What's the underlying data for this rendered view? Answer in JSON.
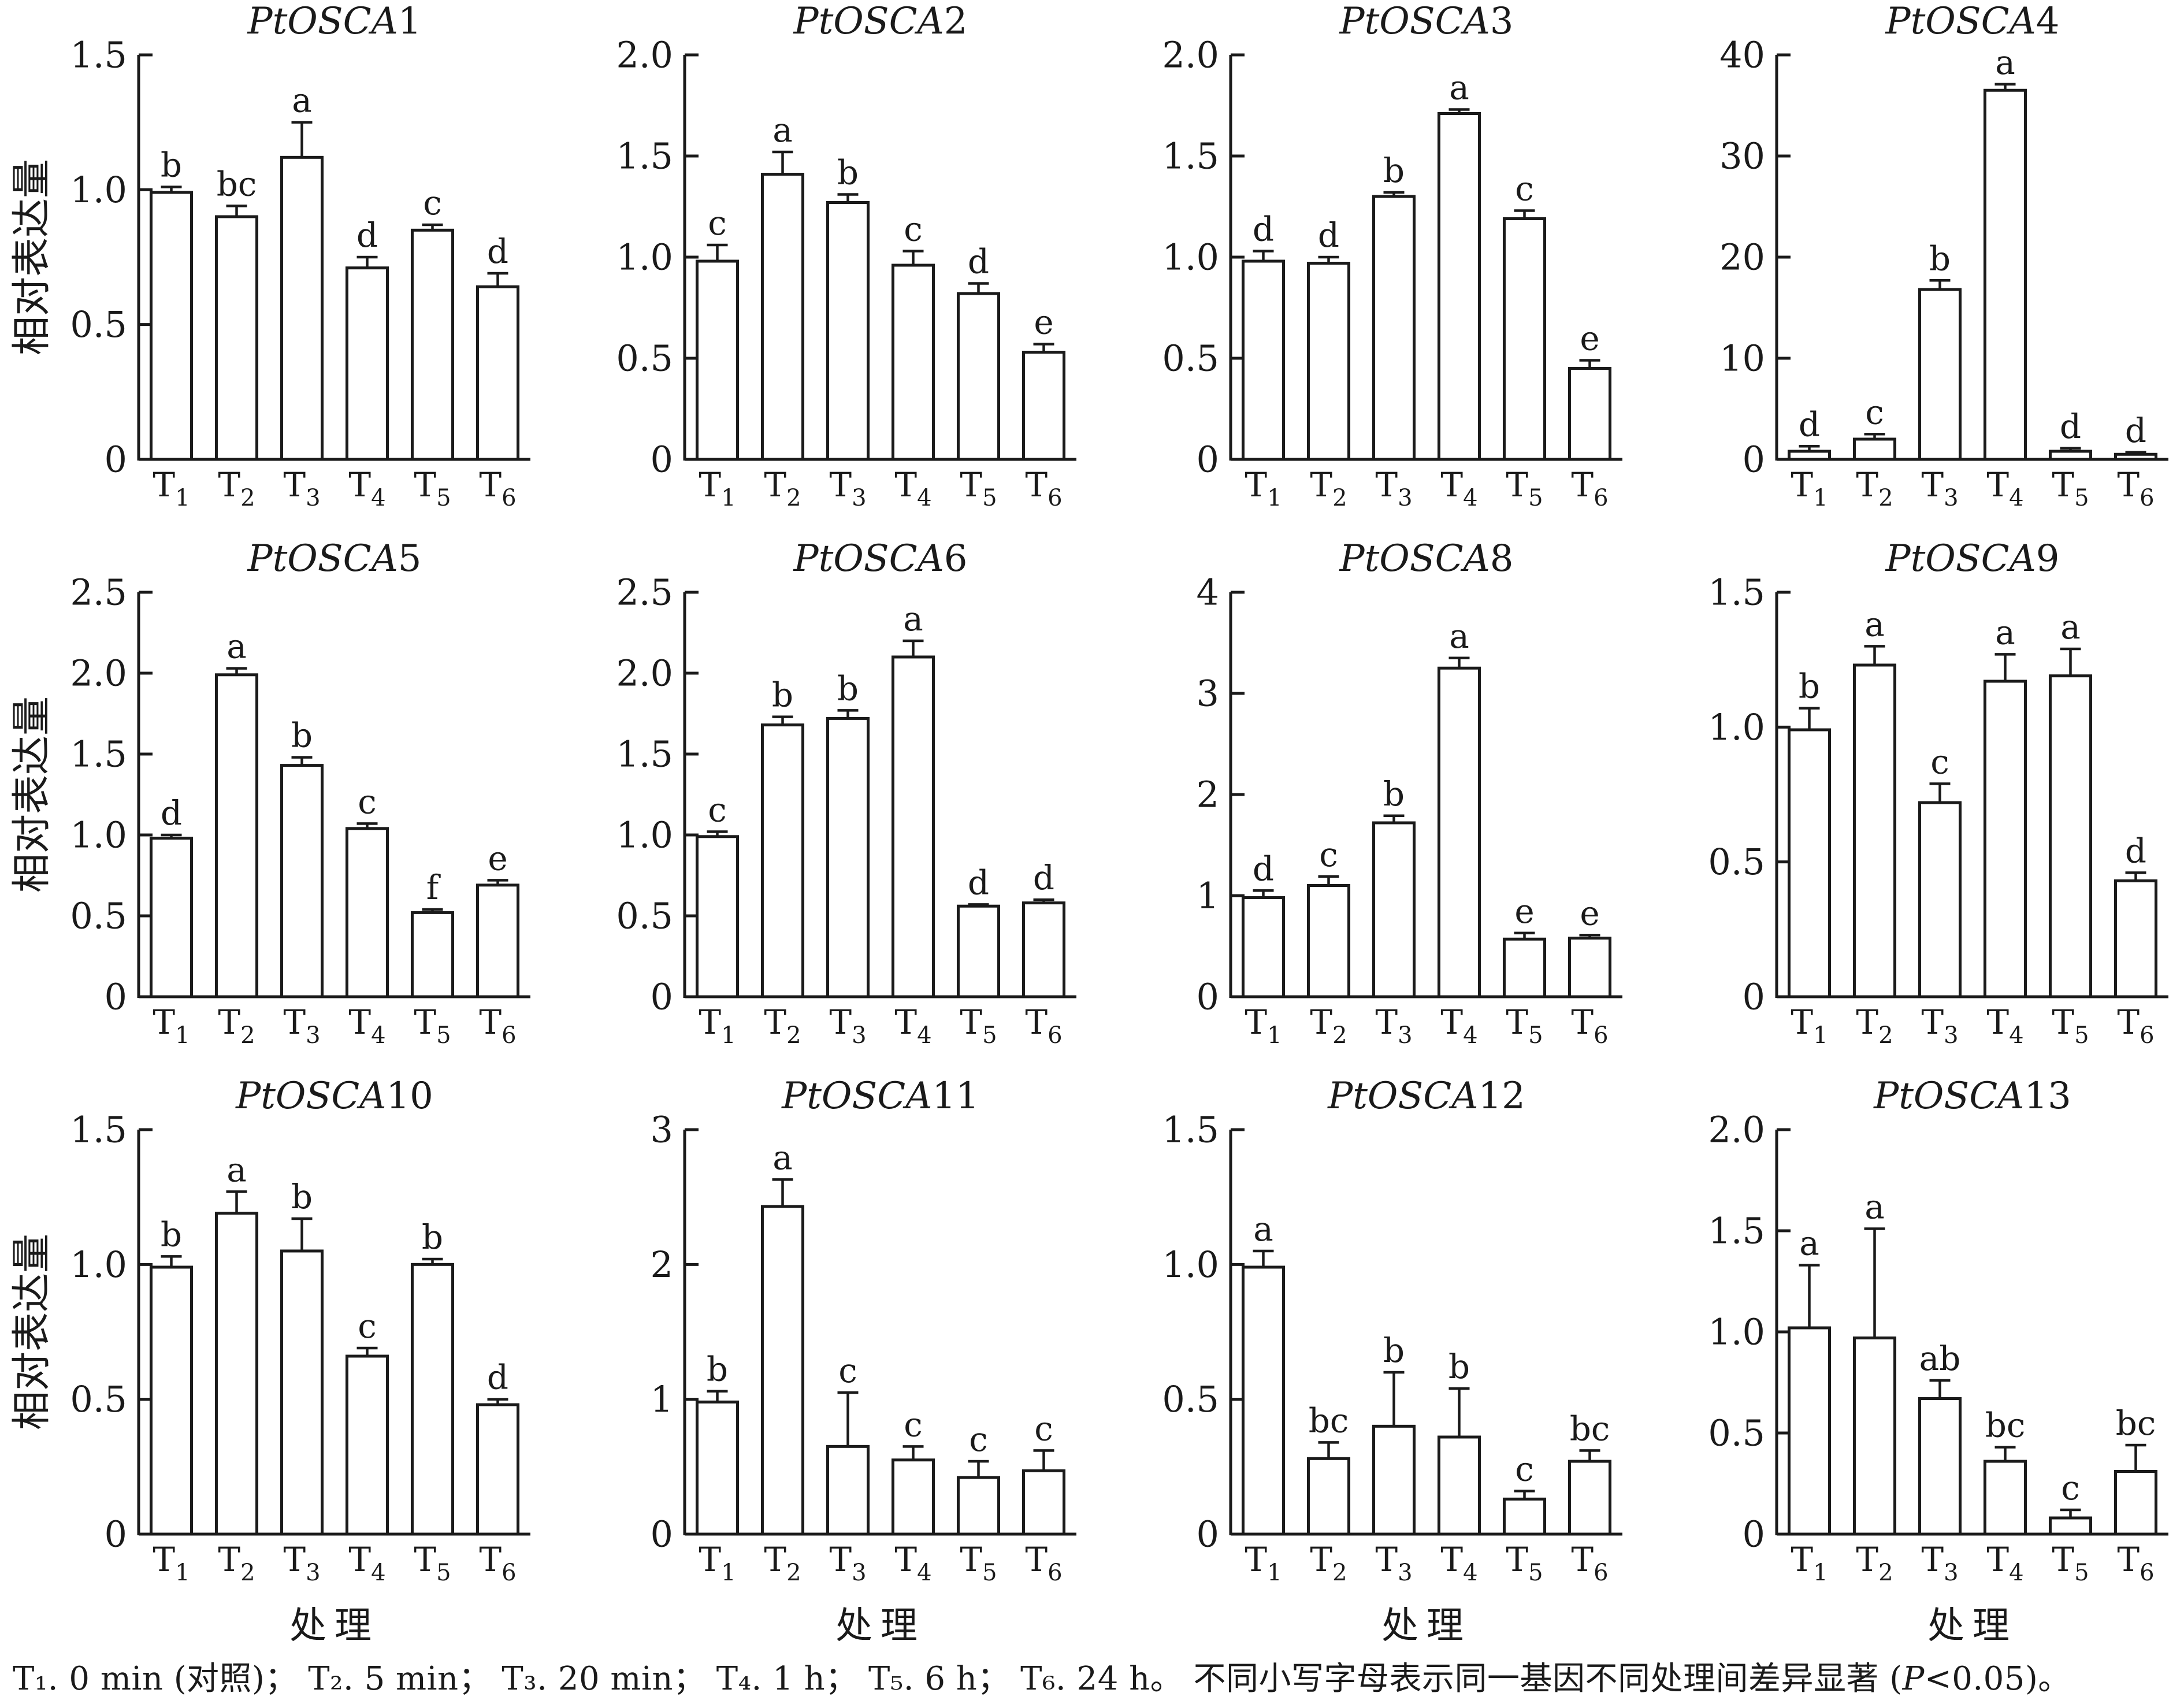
{
  "figure": {
    "y_axis_label": "相对表达量",
    "x_axis_label": "处理",
    "caption_treatments": "T₁. 0 min (对照)；  T₂. 5 min；  T₃. 20 min；  T₄. 1 h；  T₅. 6 h；  T₆. 24 h。",
    "caption_note_pre": " 不同小写字母表示同一基因不同处理间差异显著 (",
    "caption_note_p": "P",
    "caption_note_post": "<0.05)。"
  },
  "chart_data": [
    {
      "type": "bar",
      "title": "PtOSCA1",
      "ylabel": "相对表达量",
      "xlabel": "",
      "ylim": [
        0,
        1.5
      ],
      "ticks": [
        "0",
        "0.5",
        "1.0",
        "1.5"
      ],
      "categories": [
        "T1",
        "T2",
        "T3",
        "T4",
        "T5",
        "T6"
      ],
      "values": [
        0.99,
        0.9,
        1.12,
        0.71,
        0.85,
        0.64
      ],
      "errors": [
        0.02,
        0.04,
        0.13,
        0.04,
        0.02,
        0.05
      ],
      "letters": [
        "b",
        "bc",
        "a",
        "d",
        "c",
        "d"
      ]
    },
    {
      "type": "bar",
      "title": "PtOSCA2",
      "ylabel": "",
      "xlabel": "",
      "ylim": [
        0,
        2.0
      ],
      "ticks": [
        "0",
        "0.5",
        "1.0",
        "1.5",
        "2.0"
      ],
      "categories": [
        "T1",
        "T2",
        "T3",
        "T4",
        "T5",
        "T6"
      ],
      "values": [
        0.98,
        1.41,
        1.27,
        0.96,
        0.82,
        0.53
      ],
      "errors": [
        0.08,
        0.11,
        0.04,
        0.07,
        0.05,
        0.04
      ],
      "letters": [
        "c",
        "a",
        "b",
        "c",
        "d",
        "e"
      ]
    },
    {
      "type": "bar",
      "title": "PtOSCA3",
      "ylabel": "",
      "xlabel": "",
      "ylim": [
        0,
        2.0
      ],
      "ticks": [
        "0",
        "0.5",
        "1.0",
        "1.5",
        "2.0"
      ],
      "categories": [
        "T1",
        "T2",
        "T3",
        "T4",
        "T5",
        "T6"
      ],
      "values": [
        0.98,
        0.97,
        1.3,
        1.71,
        1.19,
        0.45
      ],
      "errors": [
        0.05,
        0.03,
        0.02,
        0.02,
        0.04,
        0.04
      ],
      "letters": [
        "d",
        "d",
        "b",
        "a",
        "c",
        "e"
      ]
    },
    {
      "type": "bar",
      "title": "PtOSCA4",
      "ylabel": "",
      "xlabel": "",
      "ylim": [
        0,
        40
      ],
      "ticks": [
        "0",
        "10",
        "20",
        "30",
        "40"
      ],
      "categories": [
        "T1",
        "T2",
        "T3",
        "T4",
        "T5",
        "T6"
      ],
      "values": [
        0.8,
        2.0,
        16.8,
        36.5,
        0.8,
        0.5
      ],
      "errors": [
        0.5,
        0.5,
        0.9,
        0.6,
        0.3,
        0.2
      ],
      "letters": [
        "d",
        "c",
        "b",
        "a",
        "d",
        "d"
      ]
    },
    {
      "type": "bar",
      "title": "PtOSCA5",
      "ylabel": "相对表达量",
      "xlabel": "",
      "ylim": [
        0,
        2.5
      ],
      "ticks": [
        "0",
        "0.5",
        "1.0",
        "1.5",
        "2.0",
        "2.5"
      ],
      "categories": [
        "T1",
        "T2",
        "T3",
        "T4",
        "T5",
        "T6"
      ],
      "values": [
        0.98,
        1.99,
        1.43,
        1.04,
        0.52,
        0.69
      ],
      "errors": [
        0.02,
        0.04,
        0.05,
        0.03,
        0.02,
        0.03
      ],
      "letters": [
        "d",
        "a",
        "b",
        "c",
        "f",
        "e"
      ]
    },
    {
      "type": "bar",
      "title": "PtOSCA6",
      "ylabel": "",
      "xlabel": "",
      "ylim": [
        0,
        2.5
      ],
      "ticks": [
        "0",
        "0.5",
        "1.0",
        "1.5",
        "2.0",
        "2.5"
      ],
      "categories": [
        "T1",
        "T2",
        "T3",
        "T4",
        "T5",
        "T6"
      ],
      "values": [
        0.99,
        1.68,
        1.72,
        2.1,
        0.56,
        0.58
      ],
      "errors": [
        0.03,
        0.05,
        0.05,
        0.1,
        0.01,
        0.02
      ],
      "letters": [
        "c",
        "b",
        "b",
        "a",
        "d",
        "d"
      ]
    },
    {
      "type": "bar",
      "title": "PtOSCA8",
      "ylabel": "",
      "xlabel": "",
      "ylim": [
        0,
        4
      ],
      "ticks": [
        "0",
        "1",
        "2",
        "3",
        "4"
      ],
      "categories": [
        "T1",
        "T2",
        "T3",
        "T4",
        "T5",
        "T6"
      ],
      "values": [
        0.98,
        1.1,
        1.72,
        3.25,
        0.57,
        0.58
      ],
      "errors": [
        0.07,
        0.09,
        0.07,
        0.1,
        0.06,
        0.03
      ],
      "letters": [
        "d",
        "c",
        "b",
        "a",
        "e",
        "e"
      ]
    },
    {
      "type": "bar",
      "title": "PtOSCA9",
      "ylabel": "",
      "xlabel": "",
      "ylim": [
        0,
        1.5
      ],
      "ticks": [
        "0",
        "0.5",
        "1.0",
        "1.5"
      ],
      "categories": [
        "T1",
        "T2",
        "T3",
        "T4",
        "T5",
        "T6"
      ],
      "values": [
        0.99,
        1.23,
        0.72,
        1.17,
        1.19,
        0.43
      ],
      "errors": [
        0.08,
        0.07,
        0.07,
        0.1,
        0.1,
        0.03
      ],
      "letters": [
        "b",
        "a",
        "c",
        "a",
        "a",
        "d"
      ]
    },
    {
      "type": "bar",
      "title": "PtOSCA10",
      "ylabel": "相对表达量",
      "xlabel": "处理",
      "ylim": [
        0,
        1.5
      ],
      "ticks": [
        "0",
        "0.5",
        "1.0",
        "1.5"
      ],
      "categories": [
        "T1",
        "T2",
        "T3",
        "T4",
        "T5",
        "T6"
      ],
      "values": [
        0.99,
        1.19,
        1.05,
        0.66,
        1.0,
        0.48
      ],
      "errors": [
        0.04,
        0.08,
        0.12,
        0.03,
        0.02,
        0.02
      ],
      "letters": [
        "b",
        "a",
        "b",
        "c",
        "b",
        "d"
      ]
    },
    {
      "type": "bar",
      "title": "PtOSCA11",
      "ylabel": "",
      "xlabel": "处理",
      "ylim": [
        0,
        3
      ],
      "ticks": [
        "0",
        "1",
        "2",
        "3"
      ],
      "categories": [
        "T1",
        "T2",
        "T3",
        "T4",
        "T5",
        "T6"
      ],
      "values": [
        0.98,
        2.43,
        0.65,
        0.55,
        0.42,
        0.47
      ],
      "errors": [
        0.08,
        0.2,
        0.4,
        0.1,
        0.12,
        0.15
      ],
      "letters": [
        "b",
        "a",
        "c",
        "c",
        "c",
        "c"
      ]
    },
    {
      "type": "bar",
      "title": "PtOSCA12",
      "ylabel": "",
      "xlabel": "处理",
      "ylim": [
        0,
        1.5
      ],
      "ticks": [
        "0",
        "0.5",
        "1.0",
        "1.5"
      ],
      "categories": [
        "T1",
        "T2",
        "T3",
        "T4",
        "T5",
        "T6"
      ],
      "values": [
        0.99,
        0.28,
        0.4,
        0.36,
        0.13,
        0.27
      ],
      "errors": [
        0.06,
        0.06,
        0.2,
        0.18,
        0.03,
        0.04
      ],
      "letters": [
        "a",
        "bc",
        "b",
        "b",
        "c",
        "bc"
      ]
    },
    {
      "type": "bar",
      "title": "PtOSCA13",
      "ylabel": "",
      "xlabel": "处理",
      "ylim": [
        0,
        2.0
      ],
      "ticks": [
        "0",
        "0.5",
        "1.0",
        "1.5",
        "2.0"
      ],
      "categories": [
        "T1",
        "T2",
        "T3",
        "T4",
        "T5",
        "T6"
      ],
      "values": [
        1.02,
        0.97,
        0.67,
        0.36,
        0.08,
        0.31
      ],
      "errors": [
        0.31,
        0.54,
        0.09,
        0.07,
        0.04,
        0.13
      ],
      "letters": [
        "a",
        "a",
        "ab",
        "bc",
        "c",
        "bc"
      ]
    }
  ]
}
